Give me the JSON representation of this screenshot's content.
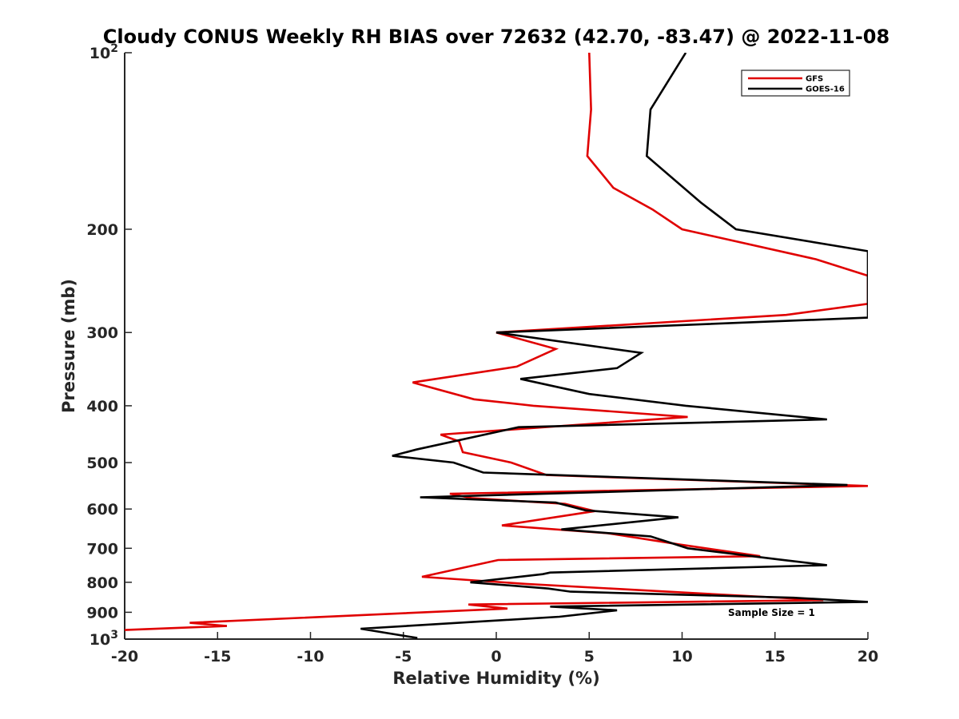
{
  "chart_data": {
    "type": "line",
    "title": "Cloudy CONUS Weekly RH BIAS over 72632 (42.70, -83.47) @ 2022-11-08",
    "xlabel": "Relative Humidity (%)",
    "ylabel": "Pressure (mb)",
    "xlim": [
      -20,
      20
    ],
    "ylim": [
      100,
      1000
    ],
    "y_scale": "log",
    "y_reversed": true,
    "x_ticks": [
      "-20",
      "-15",
      "-10",
      "-5",
      "0",
      "5",
      "10",
      "15",
      "20"
    ],
    "y_ticks": [
      {
        "value": 100,
        "base": "10",
        "exp": "2",
        "label": ""
      },
      {
        "value": 200,
        "label": "200"
      },
      {
        "value": 300,
        "label": "300"
      },
      {
        "value": 400,
        "label": "400"
      },
      {
        "value": 500,
        "label": "500"
      },
      {
        "value": 600,
        "label": "600"
      },
      {
        "value": 700,
        "label": "700"
      },
      {
        "value": 800,
        "label": "800"
      },
      {
        "value": 900,
        "label": "900"
      },
      {
        "value": 1000,
        "base": "10",
        "exp": "3",
        "label": ""
      }
    ],
    "grid": false,
    "legend_position": "top-right",
    "annotation": "Sample Size = 1",
    "series": [
      {
        "name": "GFS",
        "color": "#e00000",
        "points": [
          [
            5.0,
            100
          ],
          [
            5.1,
            125
          ],
          [
            4.9,
            150
          ],
          [
            6.3,
            170
          ],
          [
            8.4,
            185
          ],
          [
            10.0,
            200
          ],
          [
            17.2,
            225
          ],
          [
            20.0,
            240
          ],
          [
            20.0,
            268
          ],
          [
            15.6,
            280
          ],
          [
            0.0,
            300
          ],
          [
            3.2,
            320
          ],
          [
            1.1,
            343
          ],
          [
            -4.5,
            365
          ],
          [
            -1.2,
            390
          ],
          [
            2.0,
            400
          ],
          [
            10.3,
            418
          ],
          [
            -3.0,
            448
          ],
          [
            -2.0,
            460
          ],
          [
            -1.8,
            480
          ],
          [
            0.8,
            500
          ],
          [
            2.7,
            525
          ],
          [
            20.0,
            548
          ],
          [
            -2.5,
            565
          ],
          [
            -1.3,
            575
          ],
          [
            3.7,
            588
          ],
          [
            5.3,
            605
          ],
          [
            0.3,
            640
          ],
          [
            6.0,
            660
          ],
          [
            9.9,
            690
          ],
          [
            14.2,
            722
          ],
          [
            0.1,
            733
          ],
          [
            -4.0,
            783
          ],
          [
            1.6,
            805
          ],
          [
            17.6,
            858
          ],
          [
            -1.5,
            873
          ],
          [
            0.6,
            887
          ],
          [
            -16.5,
            938
          ],
          [
            -14.5,
            950
          ],
          [
            -20.0,
            965
          ]
        ]
      },
      {
        "name": "GOES-16",
        "color": "#000000",
        "points": [
          [
            10.2,
            100
          ],
          [
            8.3,
            125
          ],
          [
            8.1,
            150
          ],
          [
            11.0,
            180
          ],
          [
            12.9,
            200
          ],
          [
            20.0,
            218
          ],
          [
            20.0,
            283
          ],
          [
            0.0,
            300
          ],
          [
            7.8,
            325
          ],
          [
            6.5,
            345
          ],
          [
            1.3,
            360
          ],
          [
            5.0,
            382
          ],
          [
            10.2,
            400
          ],
          [
            17.8,
            422
          ],
          [
            1.2,
            435
          ],
          [
            -4.3,
            475
          ],
          [
            -5.6,
            487
          ],
          [
            -2.3,
            500
          ],
          [
            -0.7,
            520
          ],
          [
            18.9,
            546
          ],
          [
            -4.1,
            573
          ],
          [
            3.2,
            585
          ],
          [
            4.8,
            603
          ],
          [
            9.8,
            620
          ],
          [
            3.5,
            650
          ],
          [
            8.3,
            668
          ],
          [
            10.3,
            700
          ],
          [
            15.3,
            732
          ],
          [
            17.8,
            748
          ],
          [
            2.9,
            770
          ],
          [
            2.5,
            775
          ],
          [
            -1.4,
            800
          ],
          [
            2.8,
            820
          ],
          [
            4.0,
            830
          ],
          [
            16.0,
            850
          ],
          [
            20.0,
            864
          ],
          [
            2.9,
            880
          ],
          [
            6.5,
            893
          ],
          [
            3.4,
            916
          ],
          [
            -7.3,
            960
          ],
          [
            -4.3,
            995
          ],
          [
            -4.3,
            1010
          ]
        ]
      }
    ]
  }
}
